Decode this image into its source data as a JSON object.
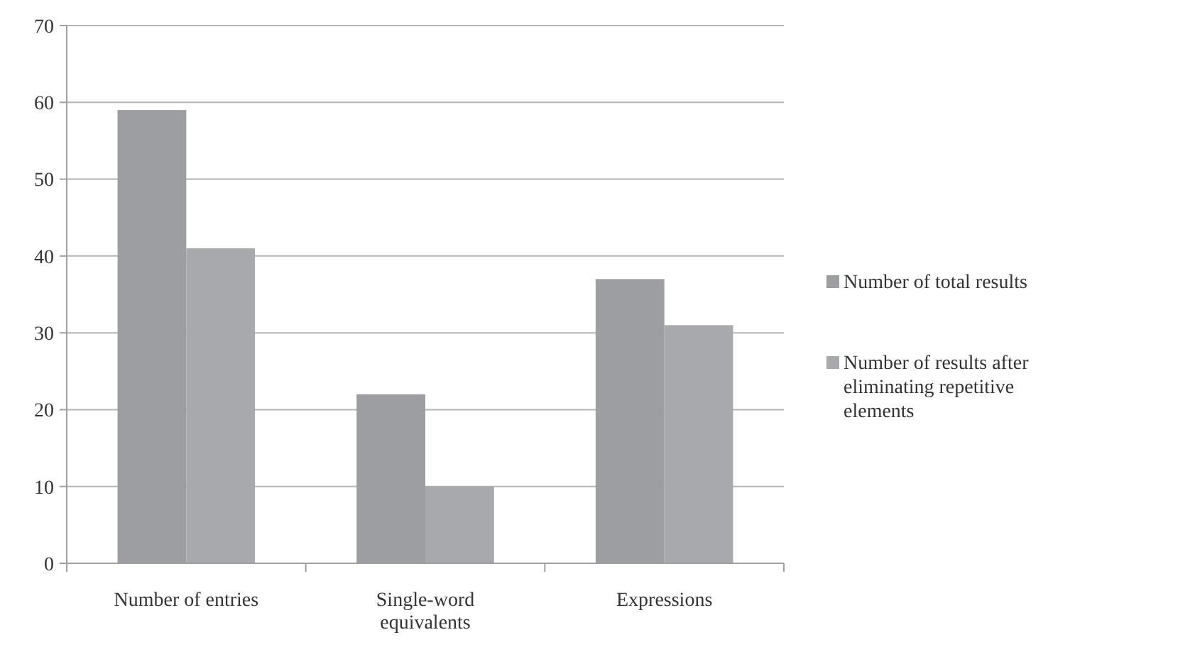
{
  "chart_data": {
    "type": "bar",
    "categories": [
      "Number of entries",
      "Single-word equivalents",
      "Expressions"
    ],
    "series": [
      {
        "name": "Number of total results",
        "color": "#9d9ea2",
        "values": [
          59,
          22,
          37
        ]
      },
      {
        "name": "Number of results after eliminating repetitive elements",
        "color": "#a8a9ad",
        "values": [
          41,
          10,
          31
        ]
      }
    ],
    "ylim": [
      0,
      70
    ],
    "yticks": [
      0,
      10,
      20,
      30,
      40,
      50,
      60,
      70
    ],
    "grid": "y",
    "legend": "right"
  }
}
